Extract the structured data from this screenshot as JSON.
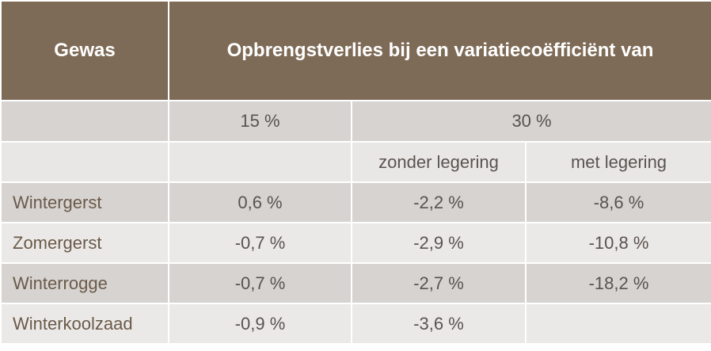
{
  "header": {
    "crop": "Gewas",
    "loss": "Opbrengstverlies bij een variatiecoëfficiënt van"
  },
  "subheader": {
    "cv15": "15 %",
    "cv30": "30 %",
    "without_alloy": "zonder legering",
    "with_alloy": "met legering"
  },
  "rows": [
    [
      "Wintergerst",
      "0,6 %",
      "-2,2 %",
      "-8,6 %"
    ],
    [
      "Zomergerst",
      "-0,7 %",
      "-2,9 %",
      "-10,8 %"
    ],
    [
      "Winterrogge",
      "-0,7 %",
      "-2,7 %",
      "-18,2 %"
    ],
    [
      "Winterkoolzaad",
      "-0,9 %",
      "-3,6 %"
    ]
  ]
}
